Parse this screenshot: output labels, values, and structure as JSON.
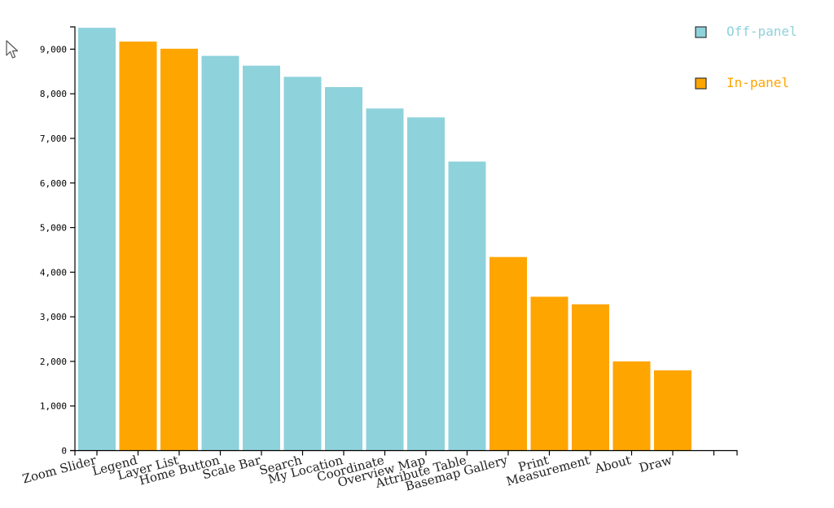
{
  "chart_data": {
    "type": "bar",
    "title": "",
    "xlabel": "",
    "ylabel": "",
    "categories": [
      "Zoom Slider",
      "Legend",
      "Layer List",
      "Home Button",
      "Scale Bar",
      "Search",
      "My Location",
      "Coordinate",
      "Overview Map",
      "Attribute Table",
      "Basemap Gallery",
      "Print",
      "Measurement",
      "About",
      "Draw"
    ],
    "values": [
      9480,
      9170,
      9010,
      8850,
      8630,
      8380,
      8150,
      7670,
      7470,
      6480,
      4340,
      3450,
      3280,
      2000,
      1800
    ],
    "groups": [
      "Off-panel",
      "In-panel",
      "In-panel",
      "Off-panel",
      "Off-panel",
      "Off-panel",
      "Off-panel",
      "Off-panel",
      "Off-panel",
      "Off-panel",
      "In-panel",
      "In-panel",
      "In-panel",
      "In-panel",
      "In-panel"
    ],
    "ylim": [
      0,
      9500
    ],
    "yticks": [
      0,
      1000,
      2000,
      3000,
      4000,
      5000,
      6000,
      7000,
      8000,
      9000
    ],
    "ytick_labels": [
      "0",
      "1,000",
      "2,000",
      "3,000",
      "4,000",
      "5,000",
      "6,000",
      "7,000",
      "8,000",
      "9,000"
    ],
    "grid": false,
    "legend_position": "top-right",
    "legend": [
      {
        "name": "Off-panel",
        "color": "#8ED2DC"
      },
      {
        "name": "In-panel",
        "color": "#FFA500"
      }
    ]
  },
  "cursor_icon": "mouse-pointer-icon"
}
